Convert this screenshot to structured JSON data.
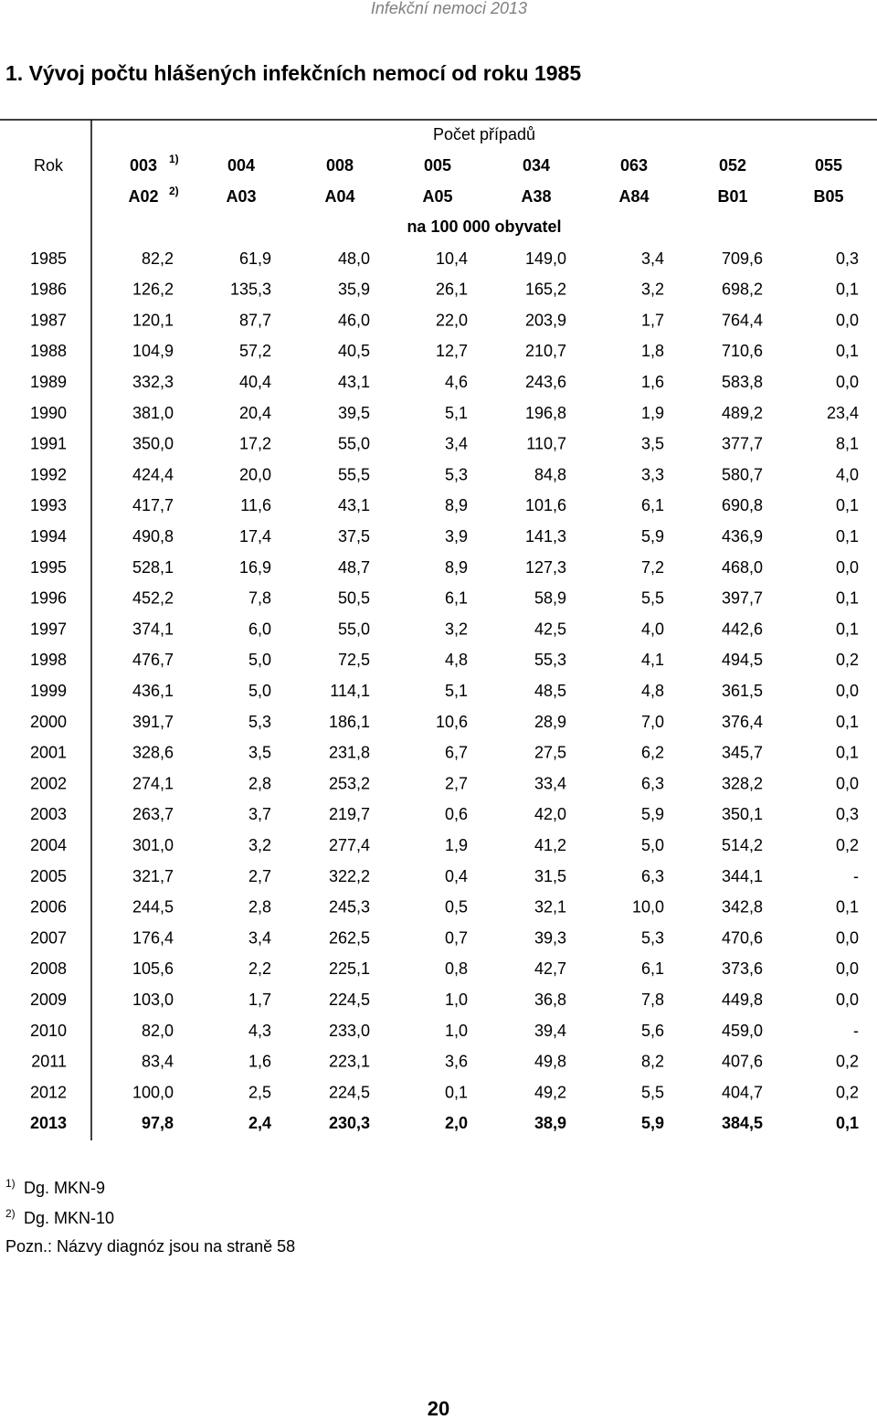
{
  "header": {
    "running_title": "Infekční nemoci 2013"
  },
  "title": "1.  Vývoj počtu hlášených infekčních nemocí od roku 1985",
  "table": {
    "group_header": "Počet případů",
    "rok_label": "Rok",
    "codes_mkn9": [
      "003",
      "004",
      "008",
      "005",
      "034",
      "063",
      "052",
      "055"
    ],
    "codes_mkn9_note": "1)",
    "codes_mkn10": [
      "A02",
      "A03",
      "A04",
      "A05",
      "A38",
      "A84",
      "B01",
      "B05"
    ],
    "codes_mkn10_note": "2)",
    "unit_row": "na 100 000 obyvatel",
    "rows": [
      [
        "1985",
        "82,2",
        "61,9",
        "48,0",
        "10,4",
        "149,0",
        "3,4",
        "709,6",
        "0,3"
      ],
      [
        "1986",
        "126,2",
        "135,3",
        "35,9",
        "26,1",
        "165,2",
        "3,2",
        "698,2",
        "0,1"
      ],
      [
        "1987",
        "120,1",
        "87,7",
        "46,0",
        "22,0",
        "203,9",
        "1,7",
        "764,4",
        "0,0"
      ],
      [
        "1988",
        "104,9",
        "57,2",
        "40,5",
        "12,7",
        "210,7",
        "1,8",
        "710,6",
        "0,1"
      ],
      [
        "1989",
        "332,3",
        "40,4",
        "43,1",
        "4,6",
        "243,6",
        "1,6",
        "583,8",
        "0,0"
      ],
      [
        "1990",
        "381,0",
        "20,4",
        "39,5",
        "5,1",
        "196,8",
        "1,9",
        "489,2",
        "23,4"
      ],
      [
        "1991",
        "350,0",
        "17,2",
        "55,0",
        "3,4",
        "110,7",
        "3,5",
        "377,7",
        "8,1"
      ],
      [
        "1992",
        "424,4",
        "20,0",
        "55,5",
        "5,3",
        "84,8",
        "3,3",
        "580,7",
        "4,0"
      ],
      [
        "1993",
        "417,7",
        "11,6",
        "43,1",
        "8,9",
        "101,6",
        "6,1",
        "690,8",
        "0,1"
      ],
      [
        "1994",
        "490,8",
        "17,4",
        "37,5",
        "3,9",
        "141,3",
        "5,9",
        "436,9",
        "0,1"
      ],
      [
        "1995",
        "528,1",
        "16,9",
        "48,7",
        "8,9",
        "127,3",
        "7,2",
        "468,0",
        "0,0"
      ],
      [
        "1996",
        "452,2",
        "7,8",
        "50,5",
        "6,1",
        "58,9",
        "5,5",
        "397,7",
        "0,1"
      ],
      [
        "1997",
        "374,1",
        "6,0",
        "55,0",
        "3,2",
        "42,5",
        "4,0",
        "442,6",
        "0,1"
      ],
      [
        "1998",
        "476,7",
        "5,0",
        "72,5",
        "4,8",
        "55,3",
        "4,1",
        "494,5",
        "0,2"
      ],
      [
        "1999",
        "436,1",
        "5,0",
        "114,1",
        "5,1",
        "48,5",
        "4,8",
        "361,5",
        "0,0"
      ],
      [
        "2000",
        "391,7",
        "5,3",
        "186,1",
        "10,6",
        "28,9",
        "7,0",
        "376,4",
        "0,1"
      ],
      [
        "2001",
        "328,6",
        "3,5",
        "231,8",
        "6,7",
        "27,5",
        "6,2",
        "345,7",
        "0,1"
      ],
      [
        "2002",
        "274,1",
        "2,8",
        "253,2",
        "2,7",
        "33,4",
        "6,3",
        "328,2",
        "0,0"
      ],
      [
        "2003",
        "263,7",
        "3,7",
        "219,7",
        "0,6",
        "42,0",
        "5,9",
        "350,1",
        "0,3"
      ],
      [
        "2004",
        "301,0",
        "3,2",
        "277,4",
        "1,9",
        "41,2",
        "5,0",
        "514,2",
        "0,2"
      ],
      [
        "2005",
        "321,7",
        "2,7",
        "322,2",
        "0,4",
        "31,5",
        "6,3",
        "344,1",
        "-"
      ],
      [
        "2006",
        "244,5",
        "2,8",
        "245,3",
        "0,5",
        "32,1",
        "10,0",
        "342,8",
        "0,1"
      ],
      [
        "2007",
        "176,4",
        "3,4",
        "262,5",
        "0,7",
        "39,3",
        "5,3",
        "470,6",
        "0,0"
      ],
      [
        "2008",
        "105,6",
        "2,2",
        "225,1",
        "0,8",
        "42,7",
        "6,1",
        "373,6",
        "0,0"
      ],
      [
        "2009",
        "103,0",
        "1,7",
        "224,5",
        "1,0",
        "36,8",
        "7,8",
        "449,8",
        "0,0"
      ],
      [
        "2010",
        "82,0",
        "4,3",
        "233,0",
        "1,0",
        "39,4",
        "5,6",
        "459,0",
        "-"
      ],
      [
        "2011",
        "83,4",
        "1,6",
        "223,1",
        "3,6",
        "49,8",
        "8,2",
        "407,6",
        "0,2"
      ],
      [
        "2012",
        "100,0",
        "2,5",
        "224,5",
        "0,1",
        "49,2",
        "5,5",
        "404,7",
        "0,2"
      ],
      [
        "2013",
        "97,8",
        "2,4",
        "230,3",
        "2,0",
        "38,9",
        "5,9",
        "384,5",
        "0,1"
      ]
    ]
  },
  "footnotes": [
    {
      "mark": "1)",
      "text": "Dg. MKN-9"
    },
    {
      "mark": "2)",
      "text": "Dg. MKN-10"
    }
  ],
  "note": "Pozn.: Názvy diagnóz jsou na straně 58",
  "page_number": "20"
}
